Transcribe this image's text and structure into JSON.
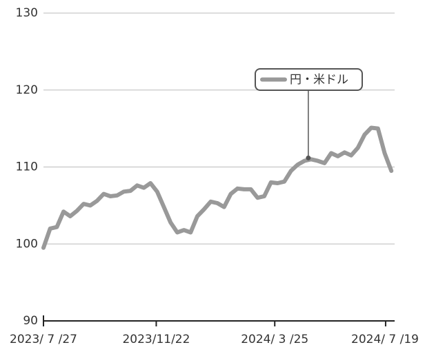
{
  "chart_data": {
    "type": "line",
    "x": [
      "2023/7/27",
      "2023/8/3",
      "2023/8/10",
      "2023/8/17",
      "2023/8/24",
      "2023/8/31",
      "2023/9/7",
      "2023/9/14",
      "2023/9/21",
      "2023/9/28",
      "2023/10/5",
      "2023/10/12",
      "2023/10/19",
      "2023/10/26",
      "2023/11/2",
      "2023/11/9",
      "2023/11/16",
      "2023/11/23",
      "2023/11/30",
      "2023/12/7",
      "2023/12/14",
      "2023/12/21",
      "2023/12/28",
      "2024/1/4",
      "2024/1/11",
      "2024/1/18",
      "2024/1/25",
      "2024/2/1",
      "2024/2/8",
      "2024/2/15",
      "2024/2/22",
      "2024/2/29",
      "2024/3/7",
      "2024/3/14",
      "2024/3/21",
      "2024/3/28",
      "2024/4/4",
      "2024/4/11",
      "2024/4/18",
      "2024/4/25",
      "2024/5/2",
      "2024/5/9",
      "2024/5/16",
      "2024/5/23",
      "2024/5/30",
      "2024/6/6",
      "2024/6/13",
      "2024/6/20",
      "2024/6/27",
      "2024/7/4",
      "2024/7/11",
      "2024/7/18",
      "2024/7/25"
    ],
    "series": [
      {
        "name": "円・米ドル",
        "color": "#999999",
        "values": [
          99.5,
          102,
          102.2,
          104.2,
          103.6,
          104.3,
          105.2,
          105,
          105.6,
          106.5,
          106.2,
          106.3,
          106.8,
          106.9,
          107.6,
          107.3,
          107.9,
          106.8,
          104.8,
          102.8,
          101.5,
          101.8,
          101.5,
          103.6,
          104.5,
          105.5,
          105.3,
          104.8,
          106.5,
          107.2,
          107.1,
          107.1,
          106,
          106.2,
          108,
          107.9,
          108.1,
          109.5,
          110.3,
          110.8,
          111,
          110.8,
          110.5,
          111.8,
          111.4,
          111.9,
          111.5,
          112.5,
          114.2,
          115.1,
          115,
          111.8,
          109.5
        ]
      }
    ],
    "xlim": [
      "2023/7/27",
      "2024/7/27"
    ],
    "xticks": [
      {
        "value": "2023/7/27",
        "label": "2023/ 7 /27"
      },
      {
        "value": "2023/11/22",
        "label": "2023/11/22"
      },
      {
        "value": "2024/3/25",
        "label": "2024/ 3 /25"
      },
      {
        "value": "2024/7/19",
        "label": "2024/ 7 /19"
      }
    ],
    "ylim": [
      90,
      130
    ],
    "yticks": [
      90,
      100,
      110,
      120,
      130
    ],
    "grid": true
  }
}
